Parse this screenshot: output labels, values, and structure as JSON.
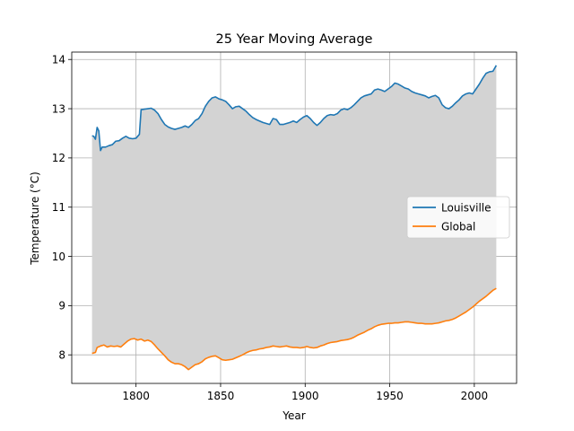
{
  "chart_data": {
    "type": "line",
    "title": "25 Year Moving Average",
    "xlabel": "Year",
    "ylabel": "Temperature (°C)",
    "xlim": [
      1762,
      2025
    ],
    "ylim": [
      7.42,
      14.15
    ],
    "xticks": [
      1800,
      1850,
      1900,
      1950,
      2000
    ],
    "yticks": [
      8,
      9,
      10,
      11,
      12,
      13,
      14
    ],
    "grid": true,
    "legend_position": "center-right",
    "fill_between": {
      "color": "#d3d3d3",
      "between": [
        "Louisville",
        "Global"
      ]
    },
    "series": [
      {
        "name": "Louisville",
        "color": "#1f77b4",
        "points": [
          [
            1774,
            12.45
          ],
          [
            1775,
            12.44
          ],
          [
            1776,
            12.38
          ],
          [
            1777,
            12.62
          ],
          [
            1778,
            12.55
          ],
          [
            1779,
            12.15
          ],
          [
            1780,
            12.22
          ],
          [
            1782,
            12.22
          ],
          [
            1784,
            12.25
          ],
          [
            1786,
            12.27
          ],
          [
            1788,
            12.34
          ],
          [
            1790,
            12.35
          ],
          [
            1792,
            12.4
          ],
          [
            1794,
            12.44
          ],
          [
            1796,
            12.4
          ],
          [
            1798,
            12.39
          ],
          [
            1800,
            12.4
          ],
          [
            1802,
            12.48
          ],
          [
            1803,
            12.98
          ],
          [
            1805,
            12.99
          ],
          [
            1807,
            13.0
          ],
          [
            1809,
            13.01
          ],
          [
            1811,
            12.97
          ],
          [
            1813,
            12.9
          ],
          [
            1815,
            12.78
          ],
          [
            1817,
            12.68
          ],
          [
            1819,
            12.63
          ],
          [
            1821,
            12.6
          ],
          [
            1823,
            12.58
          ],
          [
            1825,
            12.6
          ],
          [
            1827,
            12.62
          ],
          [
            1829,
            12.65
          ],
          [
            1831,
            12.62
          ],
          [
            1833,
            12.68
          ],
          [
            1835,
            12.76
          ],
          [
            1837,
            12.8
          ],
          [
            1839,
            12.9
          ],
          [
            1841,
            13.05
          ],
          [
            1843,
            13.15
          ],
          [
            1845,
            13.22
          ],
          [
            1847,
            13.24
          ],
          [
            1849,
            13.2
          ],
          [
            1851,
            13.18
          ],
          [
            1853,
            13.15
          ],
          [
            1855,
            13.08
          ],
          [
            1857,
            13.0
          ],
          [
            1859,
            13.04
          ],
          [
            1861,
            13.05
          ],
          [
            1863,
            13.0
          ],
          [
            1865,
            12.95
          ],
          [
            1867,
            12.88
          ],
          [
            1869,
            12.82
          ],
          [
            1871,
            12.78
          ],
          [
            1873,
            12.75
          ],
          [
            1875,
            12.72
          ],
          [
            1877,
            12.7
          ],
          [
            1879,
            12.68
          ],
          [
            1881,
            12.8
          ],
          [
            1883,
            12.78
          ],
          [
            1885,
            12.68
          ],
          [
            1887,
            12.68
          ],
          [
            1889,
            12.7
          ],
          [
            1891,
            12.72
          ],
          [
            1893,
            12.75
          ],
          [
            1895,
            12.72
          ],
          [
            1897,
            12.78
          ],
          [
            1899,
            12.83
          ],
          [
            1901,
            12.86
          ],
          [
            1903,
            12.8
          ],
          [
            1905,
            12.72
          ],
          [
            1907,
            12.66
          ],
          [
            1909,
            12.72
          ],
          [
            1911,
            12.8
          ],
          [
            1913,
            12.86
          ],
          [
            1915,
            12.88
          ],
          [
            1917,
            12.87
          ],
          [
            1919,
            12.9
          ],
          [
            1921,
            12.97
          ],
          [
            1923,
            13.0
          ],
          [
            1925,
            12.98
          ],
          [
            1927,
            13.02
          ],
          [
            1929,
            13.08
          ],
          [
            1931,
            13.15
          ],
          [
            1933,
            13.22
          ],
          [
            1935,
            13.26
          ],
          [
            1937,
            13.28
          ],
          [
            1939,
            13.3
          ],
          [
            1941,
            13.38
          ],
          [
            1943,
            13.4
          ],
          [
            1945,
            13.38
          ],
          [
            1947,
            13.35
          ],
          [
            1949,
            13.4
          ],
          [
            1951,
            13.45
          ],
          [
            1953,
            13.52
          ],
          [
            1955,
            13.5
          ],
          [
            1957,
            13.46
          ],
          [
            1959,
            13.42
          ],
          [
            1961,
            13.4
          ],
          [
            1963,
            13.35
          ],
          [
            1965,
            13.32
          ],
          [
            1967,
            13.3
          ],
          [
            1969,
            13.28
          ],
          [
            1971,
            13.26
          ],
          [
            1973,
            13.22
          ],
          [
            1975,
            13.25
          ],
          [
            1977,
            13.27
          ],
          [
            1979,
            13.22
          ],
          [
            1981,
            13.08
          ],
          [
            1983,
            13.02
          ],
          [
            1985,
            13.0
          ],
          [
            1987,
            13.05
          ],
          [
            1989,
            13.12
          ],
          [
            1991,
            13.18
          ],
          [
            1993,
            13.26
          ],
          [
            1995,
            13.3
          ],
          [
            1997,
            13.32
          ],
          [
            1999,
            13.3
          ],
          [
            2001,
            13.4
          ],
          [
            2003,
            13.5
          ],
          [
            2005,
            13.62
          ],
          [
            2007,
            13.72
          ],
          [
            2009,
            13.75
          ],
          [
            2011,
            13.76
          ],
          [
            2013,
            13.88
          ]
        ]
      },
      {
        "name": "Global",
        "color": "#ff7f0e",
        "points": [
          [
            1774,
            8.03
          ],
          [
            1776,
            8.05
          ],
          [
            1777,
            8.15
          ],
          [
            1779,
            8.18
          ],
          [
            1781,
            8.2
          ],
          [
            1783,
            8.16
          ],
          [
            1785,
            8.18
          ],
          [
            1787,
            8.17
          ],
          [
            1789,
            8.18
          ],
          [
            1791,
            8.16
          ],
          [
            1793,
            8.22
          ],
          [
            1795,
            8.28
          ],
          [
            1797,
            8.32
          ],
          [
            1799,
            8.33
          ],
          [
            1801,
            8.3
          ],
          [
            1803,
            8.32
          ],
          [
            1805,
            8.28
          ],
          [
            1807,
            8.3
          ],
          [
            1809,
            8.27
          ],
          [
            1811,
            8.2
          ],
          [
            1813,
            8.12
          ],
          [
            1815,
            8.05
          ],
          [
            1817,
            7.98
          ],
          [
            1819,
            7.9
          ],
          [
            1821,
            7.85
          ],
          [
            1823,
            7.82
          ],
          [
            1825,
            7.82
          ],
          [
            1827,
            7.8
          ],
          [
            1829,
            7.76
          ],
          [
            1831,
            7.7
          ],
          [
            1833,
            7.75
          ],
          [
            1835,
            7.8
          ],
          [
            1837,
            7.82
          ],
          [
            1839,
            7.86
          ],
          [
            1841,
            7.92
          ],
          [
            1843,
            7.95
          ],
          [
            1845,
            7.97
          ],
          [
            1847,
            7.98
          ],
          [
            1849,
            7.94
          ],
          [
            1851,
            7.9
          ],
          [
            1853,
            7.89
          ],
          [
            1855,
            7.9
          ],
          [
            1857,
            7.91
          ],
          [
            1859,
            7.94
          ],
          [
            1861,
            7.97
          ],
          [
            1863,
            8.0
          ],
          [
            1865,
            8.04
          ],
          [
            1867,
            8.07
          ],
          [
            1869,
            8.09
          ],
          [
            1871,
            8.1
          ],
          [
            1873,
            8.12
          ],
          [
            1875,
            8.13
          ],
          [
            1877,
            8.15
          ],
          [
            1879,
            8.16
          ],
          [
            1881,
            8.18
          ],
          [
            1883,
            8.17
          ],
          [
            1885,
            8.16
          ],
          [
            1887,
            8.17
          ],
          [
            1889,
            8.18
          ],
          [
            1891,
            8.16
          ],
          [
            1893,
            8.15
          ],
          [
            1895,
            8.15
          ],
          [
            1897,
            8.14
          ],
          [
            1899,
            8.15
          ],
          [
            1901,
            8.17
          ],
          [
            1903,
            8.15
          ],
          [
            1905,
            8.14
          ],
          [
            1907,
            8.15
          ],
          [
            1909,
            8.18
          ],
          [
            1911,
            8.2
          ],
          [
            1913,
            8.23
          ],
          [
            1915,
            8.25
          ],
          [
            1917,
            8.26
          ],
          [
            1919,
            8.27
          ],
          [
            1921,
            8.29
          ],
          [
            1923,
            8.3
          ],
          [
            1925,
            8.31
          ],
          [
            1927,
            8.33
          ],
          [
            1929,
            8.36
          ],
          [
            1931,
            8.4
          ],
          [
            1933,
            8.43
          ],
          [
            1935,
            8.46
          ],
          [
            1937,
            8.5
          ],
          [
            1939,
            8.53
          ],
          [
            1941,
            8.57
          ],
          [
            1943,
            8.6
          ],
          [
            1945,
            8.62
          ],
          [
            1947,
            8.63
          ],
          [
            1949,
            8.64
          ],
          [
            1951,
            8.64
          ],
          [
            1953,
            8.65
          ],
          [
            1955,
            8.65
          ],
          [
            1957,
            8.66
          ],
          [
            1959,
            8.67
          ],
          [
            1961,
            8.67
          ],
          [
            1963,
            8.66
          ],
          [
            1965,
            8.65
          ],
          [
            1967,
            8.64
          ],
          [
            1969,
            8.64
          ],
          [
            1971,
            8.63
          ],
          [
            1973,
            8.63
          ],
          [
            1975,
            8.63
          ],
          [
            1977,
            8.64
          ],
          [
            1979,
            8.65
          ],
          [
            1981,
            8.67
          ],
          [
            1983,
            8.69
          ],
          [
            1985,
            8.7
          ],
          [
            1987,
            8.72
          ],
          [
            1989,
            8.75
          ],
          [
            1991,
            8.79
          ],
          [
            1993,
            8.83
          ],
          [
            1995,
            8.87
          ],
          [
            1997,
            8.92
          ],
          [
            1999,
            8.97
          ],
          [
            2001,
            9.03
          ],
          [
            2003,
            9.09
          ],
          [
            2005,
            9.14
          ],
          [
            2007,
            9.19
          ],
          [
            2009,
            9.25
          ],
          [
            2011,
            9.31
          ],
          [
            2013,
            9.35
          ]
        ]
      }
    ]
  }
}
